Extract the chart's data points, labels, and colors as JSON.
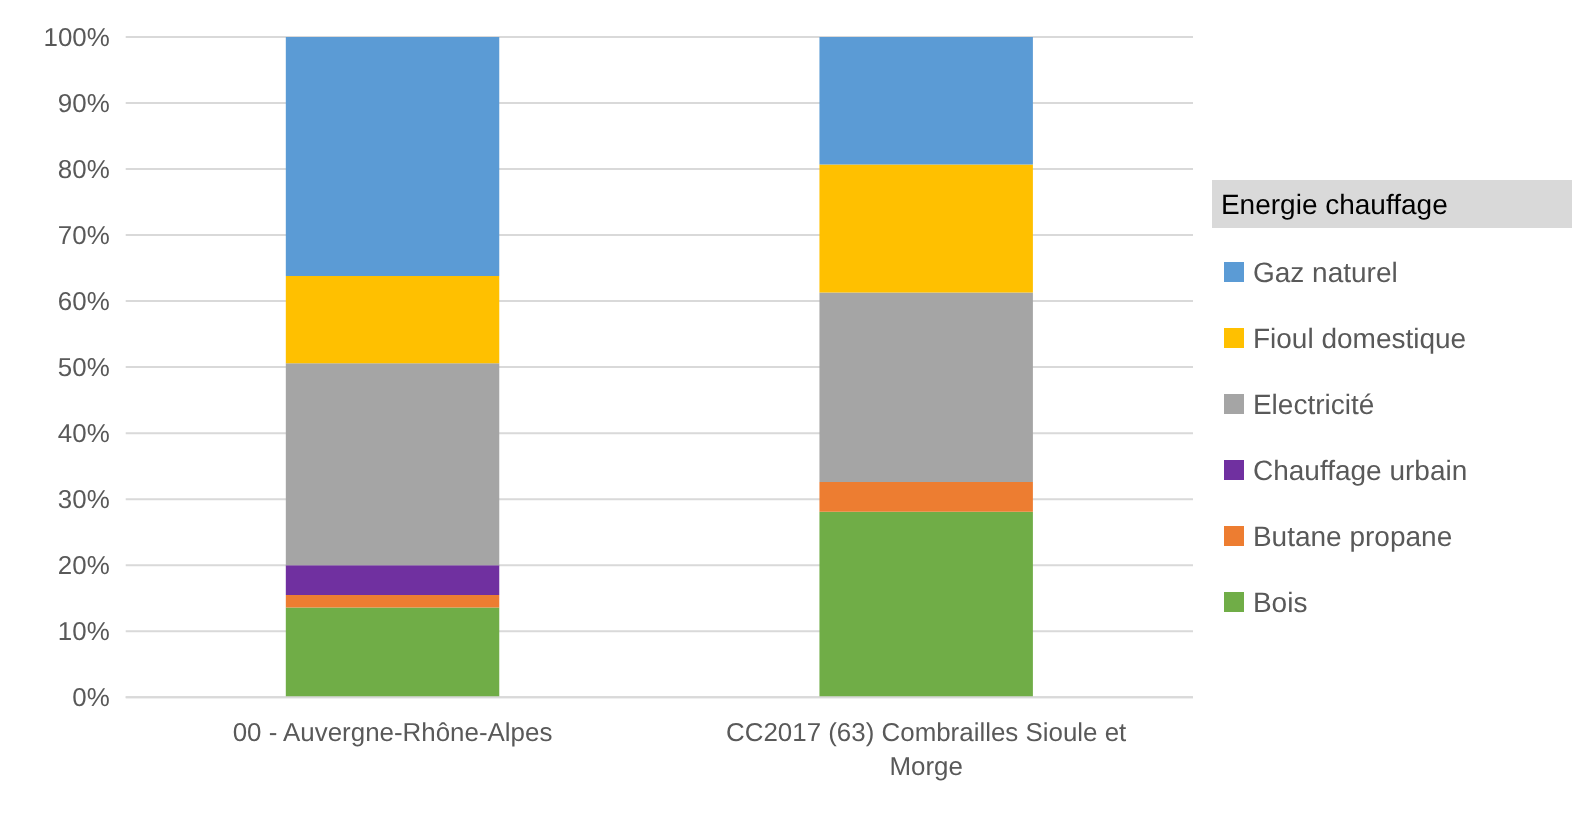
{
  "chart_data": {
    "type": "bar",
    "stacked": true,
    "legend_title": "Energie chauffage",
    "legend": "right",
    "grid": "y",
    "categories": [
      "00 - Auvergne-Rhône-Alpes",
      "CC2017 (63) Combrailles Sioule et Morge"
    ],
    "ylim": [
      0,
      100
    ],
    "yticks": [
      {
        "value": 0,
        "label": "0%"
      },
      {
        "value": 10,
        "label": "10%"
      },
      {
        "value": 20,
        "label": "20%"
      },
      {
        "value": 30,
        "label": "30%"
      },
      {
        "value": 40,
        "label": "40%"
      },
      {
        "value": 50,
        "label": "50%"
      },
      {
        "value": 60,
        "label": "60%"
      },
      {
        "value": 70,
        "label": "70%"
      },
      {
        "value": 80,
        "label": "80%"
      },
      {
        "value": 90,
        "label": "90%"
      },
      {
        "value": 100,
        "label": "100%"
      }
    ],
    "series": [
      {
        "name": "Bois",
        "color": "#70ad47",
        "values": [
          13.6,
          28.1
        ]
      },
      {
        "name": "Butane propane",
        "color": "#ed7d31",
        "values": [
          1.9,
          4.5
        ]
      },
      {
        "name": "Chauffage urbain",
        "color": "#7030a0",
        "values": [
          4.5,
          0
        ]
      },
      {
        "name": "Electricité",
        "color": "#a5a5a5",
        "values": [
          30.6,
          28.7
        ]
      },
      {
        "name": "Fioul domestique",
        "color": "#ffc000",
        "values": [
          13.2,
          19.4
        ]
      },
      {
        "name": "Gaz naturel",
        "color": "#5b9bd5",
        "values": [
          36.2,
          19.3
        ]
      }
    ]
  }
}
